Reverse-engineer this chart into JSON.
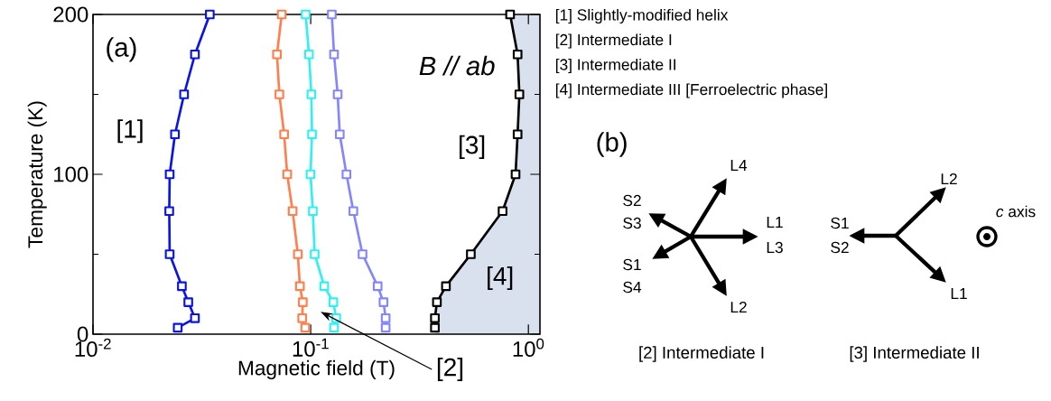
{
  "chart_data": [
    {
      "type": "line",
      "xlabel": "Magnetic field (T)",
      "ylabel": "Temperature (K)",
      "log": "x",
      "marker": "square",
      "line_style": "solid",
      "xlim": [
        0.01,
        1.13
      ],
      "ylim": [
        0,
        200
      ],
      "xticks": [
        {
          "value": 0.01,
          "label": "10$^{-2}$"
        },
        {
          "value": 0.1,
          "label": "10$^{-1}$"
        },
        {
          "value": 1,
          "label": "10$^{0}$"
        }
      ],
      "yticks": [
        0,
        100,
        200
      ],
      "series": [
        {
          "color": "#0a14e6",
          "x": [
            0.0245,
            0.0294,
            0.0274,
            0.0256,
            0.0225,
            0.0224,
            0.0225,
            0.0238,
            0.0262,
            0.0294,
            0.0344
          ],
          "values": [
            4,
            10,
            20,
            30,
            50,
            77,
            100,
            125,
            150,
            175,
            200
          ]
        },
        {
          "color": "#ff7f4f",
          "x": [
            0.0944,
            0.0914,
            0.092,
            0.0892,
            0.0873,
            0.0826,
            0.078,
            0.0755,
            0.0718,
            0.07,
            0.0736
          ],
          "values": [
            4,
            10,
            20,
            30,
            50,
            77,
            100,
            125,
            150,
            175,
            200
          ]
        },
        {
          "color": "#33f0f0",
          "x": [
            0.128,
            0.131,
            0.127,
            0.1154,
            0.1043,
            0.1023,
            0.0998,
            0.1014,
            0.1007,
            0.0982,
            0.0948
          ],
          "values": [
            4,
            10,
            20,
            30,
            50,
            77,
            100,
            125,
            150,
            175,
            200
          ]
        },
        {
          "color": "#8585ff",
          "x": [
            0.221,
            0.221,
            0.216,
            0.203,
            0.173,
            0.157,
            0.146,
            0.136,
            0.133,
            0.128,
            0.125
          ],
          "values": [
            4,
            10,
            20,
            30,
            50,
            77,
            100,
            125,
            150,
            175,
            200
          ]
        },
        {
          "color": "#000000",
          "x": [
            0.372,
            0.372,
            0.38,
            0.418,
            0.544,
            0.761,
            0.873,
            0.892,
            0.909,
            0.892,
            0.824
          ],
          "values": [
            4,
            10,
            20,
            30,
            50,
            77,
            100,
            125,
            150,
            175,
            200
          ]
        }
      ],
      "annotations": [
        "(a)",
        "B // ab",
        "[1]",
        "[3]",
        "[4]",
        "[2]",
        "[1] Slightly-modified helix",
        "[2] Intermediate I",
        "[3] Intermediate II",
        "[4] Intermediate III [Ferroelectric phase]"
      ]
    },
    {
      "type": "other",
      "annotations": [
        "(b)",
        "S2",
        "S3",
        "L4",
        "L1",
        "L3",
        "S1",
        "S4",
        "L2",
        "[2] Intermediate I",
        "S1",
        "S2",
        "L2",
        "L1",
        "*c* axis",
        "[3] Intermediate II"
      ]
    }
  ]
}
